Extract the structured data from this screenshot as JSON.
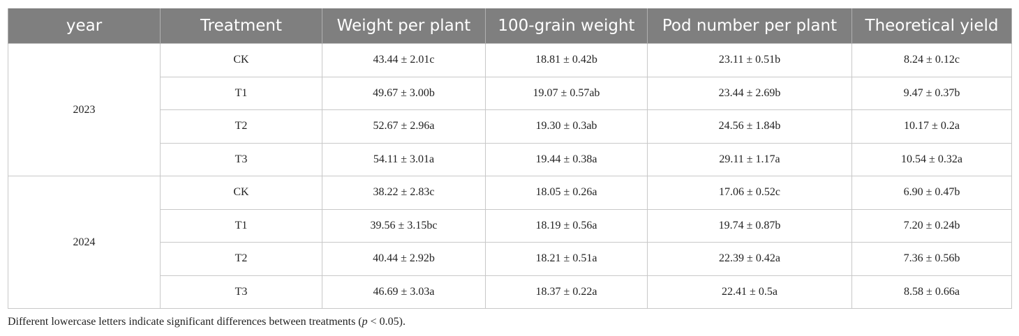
{
  "table": {
    "header": [
      "year",
      "Treatment",
      "Weight per plant",
      "100-grain weight",
      "Pod number per plant",
      "Theoretical yield"
    ],
    "groups": [
      {
        "year": "2023",
        "rows": [
          [
            "CK",
            "43.44 ± 2.01c",
            "18.81 ± 0.42b",
            "23.11 ± 0.51b",
            "8.24 ± 0.12c"
          ],
          [
            "T1",
            "49.67 ± 3.00b",
            "19.07 ± 0.57ab",
            "23.44 ± 2.69b",
            "9.47 ± 0.37b"
          ],
          [
            "T2",
            "52.67 ± 2.96a",
            "19.30 ± 0.3ab",
            "24.56 ± 1.84b",
            "10.17 ± 0.2a"
          ],
          [
            "T3",
            "54.11 ± 3.01a",
            "19.44 ± 0.38a",
            "29.11 ± 1.17a",
            "10.54 ± 0.32a"
          ]
        ]
      },
      {
        "year": "2024",
        "rows": [
          [
            "CK",
            "38.22 ± 2.83c",
            "18.05 ± 0.26a",
            "17.06 ± 0.52c",
            "6.90 ± 0.47b"
          ],
          [
            "T1",
            "39.56 ± 3.15bc",
            "18.19 ± 0.56a",
            "19.74 ± 0.87b",
            "7.20 ± 0.24b"
          ],
          [
            "T2",
            "40.44 ± 2.92b",
            "18.21 ± 0.51a",
            "22.39 ± 0.42a",
            "7.36 ± 0.56b"
          ],
          [
            "T3",
            "46.69 ± 3.03a",
            "18.37 ± 0.22a",
            "22.41 ± 0.5a",
            "8.58 ± 0.66a"
          ]
        ]
      }
    ]
  },
  "footnote": {
    "before": "Different lowercase letters indicate significant differences between treatments (",
    "italic": "p",
    "after": " < 0.05)."
  }
}
